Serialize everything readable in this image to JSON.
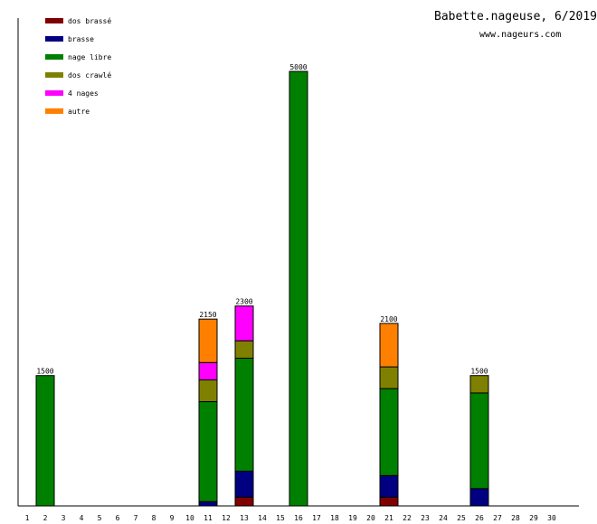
{
  "chart_data": {
    "type": "bar",
    "stacked": true,
    "title": "Babette.nageuse, 6/2019",
    "subtitle": "www.nageurs.com",
    "xlabel": "",
    "ylabel": "",
    "ylim": [
      0,
      5000
    ],
    "legend_position": "top-left",
    "categories": [
      "1",
      "2",
      "3",
      "4",
      "5",
      "6",
      "7",
      "8",
      "9",
      "10",
      "11",
      "12",
      "13",
      "14",
      "15",
      "16",
      "17",
      "18",
      "19",
      "20",
      "21",
      "22",
      "23",
      "24",
      "25",
      "26",
      "27",
      "28",
      "29",
      "30"
    ],
    "series": [
      {
        "name": "dos brassé",
        "color": "#800000",
        "values": [
          0,
          0,
          0,
          0,
          0,
          0,
          0,
          0,
          0,
          0,
          0,
          0,
          100,
          0,
          0,
          0,
          0,
          0,
          0,
          0,
          100,
          0,
          0,
          0,
          0,
          0,
          0,
          0,
          0,
          0
        ]
      },
      {
        "name": "brasse",
        "color": "#000080",
        "values": [
          0,
          0,
          0,
          0,
          0,
          0,
          0,
          0,
          0,
          0,
          50,
          0,
          300,
          0,
          0,
          0,
          0,
          0,
          0,
          0,
          250,
          0,
          0,
          0,
          0,
          200,
          0,
          0,
          0,
          0
        ]
      },
      {
        "name": "nage libre",
        "color": "#008000",
        "values": [
          0,
          1500,
          0,
          0,
          0,
          0,
          0,
          0,
          0,
          0,
          1150,
          0,
          1300,
          0,
          0,
          5000,
          0,
          0,
          0,
          0,
          1000,
          0,
          0,
          0,
          0,
          1100,
          0,
          0,
          0,
          0
        ]
      },
      {
        "name": "dos crawlé",
        "color": "#808000",
        "values": [
          0,
          0,
          0,
          0,
          0,
          0,
          0,
          0,
          0,
          0,
          250,
          0,
          200,
          0,
          0,
          0,
          0,
          0,
          0,
          0,
          250,
          0,
          0,
          0,
          0,
          200,
          0,
          0,
          0,
          0
        ]
      },
      {
        "name": "4 nages",
        "color": "#ff00ff",
        "values": [
          0,
          0,
          0,
          0,
          0,
          0,
          0,
          0,
          0,
          0,
          200,
          0,
          400,
          0,
          0,
          0,
          0,
          0,
          0,
          0,
          0,
          0,
          0,
          0,
          0,
          0,
          0,
          0,
          0,
          0
        ]
      },
      {
        "name": "autre",
        "color": "#ff8000",
        "values": [
          0,
          0,
          0,
          0,
          0,
          0,
          0,
          0,
          0,
          0,
          500,
          0,
          0,
          0,
          0,
          0,
          0,
          0,
          0,
          0,
          500,
          0,
          0,
          0,
          0,
          0,
          0,
          0,
          0,
          0
        ]
      }
    ],
    "totals": {
      "2": "1500",
      "11": "2150",
      "13": "2300",
      "16": "5000",
      "21": "2100",
      "26": "1500"
    }
  }
}
